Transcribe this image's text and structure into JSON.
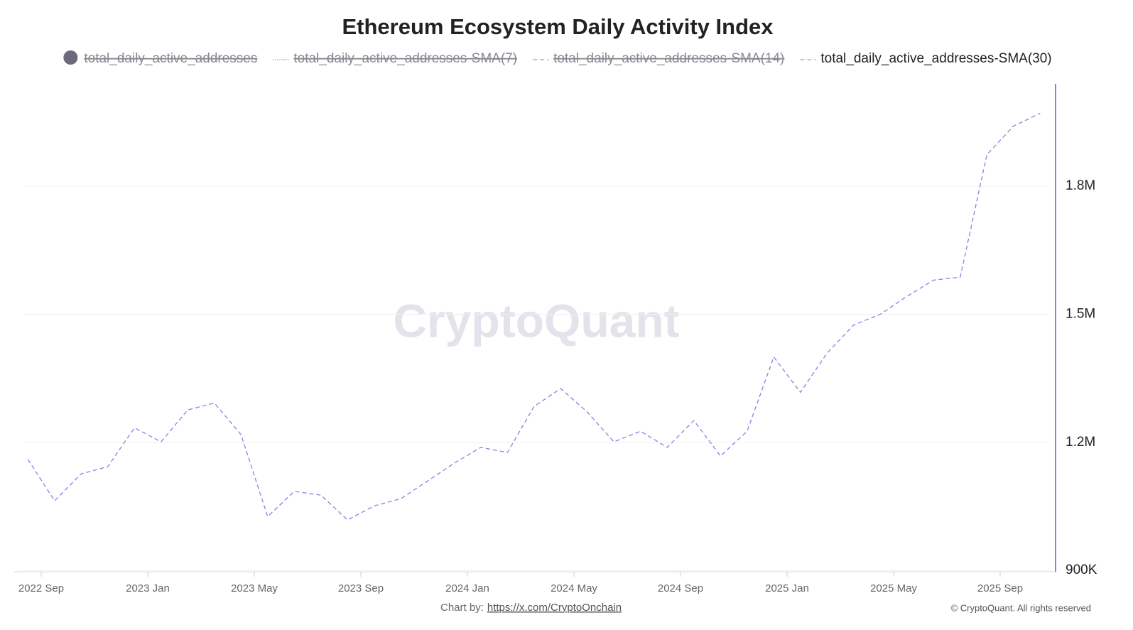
{
  "chart_data": {
    "type": "line",
    "title": "Ethereum Ecosystem Daily Activity Index",
    "watermark": "CryptoQuant",
    "credit_label": "Chart by:",
    "credit_link": "https://x.com/CryptoOnchain",
    "copyright": "© CryptoQuant. All rights reserved",
    "x": [
      "2022-08",
      "2022-09",
      "2022-10",
      "2022-11",
      "2022-12",
      "2023-01",
      "2023-02",
      "2023-03",
      "2023-04",
      "2023-05",
      "2023-06",
      "2023-07",
      "2023-08",
      "2023-09",
      "2023-10",
      "2023-11",
      "2023-12",
      "2024-01",
      "2024-02",
      "2024-03",
      "2024-04",
      "2024-05",
      "2024-06",
      "2024-07",
      "2024-08",
      "2024-09",
      "2024-10",
      "2024-11",
      "2024-12",
      "2025-01",
      "2025-02",
      "2025-03",
      "2025-04",
      "2025-05",
      "2025-06",
      "2025-07",
      "2025-08",
      "2025-09",
      "2025-10"
    ],
    "xlim": [
      "2022-08",
      "2025-10"
    ],
    "xticks": [
      {
        "value": "2022-09",
        "label": "2022 Sep"
      },
      {
        "value": "2023-01",
        "label": "2023 Jan"
      },
      {
        "value": "2023-05",
        "label": "2023 May"
      },
      {
        "value": "2023-09",
        "label": "2023 Sep"
      },
      {
        "value": "2024-01",
        "label": "2024 Jan"
      },
      {
        "value": "2024-05",
        "label": "2024 May"
      },
      {
        "value": "2024-09",
        "label": "2024 Sep"
      },
      {
        "value": "2025-01",
        "label": "2025 Jan"
      },
      {
        "value": "2025-05",
        "label": "2025 May"
      },
      {
        "value": "2025-09",
        "label": "2025 Sep"
      }
    ],
    "ylim": [
      900000,
      2040000
    ],
    "yticks": [
      {
        "value": 900000,
        "label": "900K"
      },
      {
        "value": 1200000,
        "label": "1.2M"
      },
      {
        "value": 1500000,
        "label": "1.5M"
      },
      {
        "value": 1800000,
        "label": "1.8M"
      }
    ],
    "y_axis_side": "right",
    "grid": true,
    "series": [
      {
        "name": "total_daily_active_addresses",
        "color": "#8a8791",
        "style": "circle",
        "visible": false
      },
      {
        "name": "total_daily_active_addresses-SMA(7)",
        "color": "#8a8791",
        "style": "dotted",
        "visible": false
      },
      {
        "name": "total_daily_active_addresses-SMA(14)",
        "color": "#8a8791",
        "style": "dashed",
        "visible": false
      },
      {
        "name": "total_daily_active_addresses-SMA(30)",
        "color": "#8b80e6",
        "style": "dashed",
        "visible": true,
        "values": [
          1160000,
          1063000,
          1126000,
          1143000,
          1234000,
          1201000,
          1276000,
          1292000,
          1218000,
          1026000,
          1085000,
          1076000,
          1018000,
          1051000,
          1068000,
          1109000,
          1151000,
          1188000,
          1176000,
          1284000,
          1326000,
          1271000,
          1201000,
          1226000,
          1188000,
          1251000,
          1168000,
          1226000,
          1400000,
          1317000,
          1409000,
          1475000,
          1500000,
          1542000,
          1580000,
          1587000,
          1874000,
          1941000,
          1971000
        ]
      }
    ]
  }
}
